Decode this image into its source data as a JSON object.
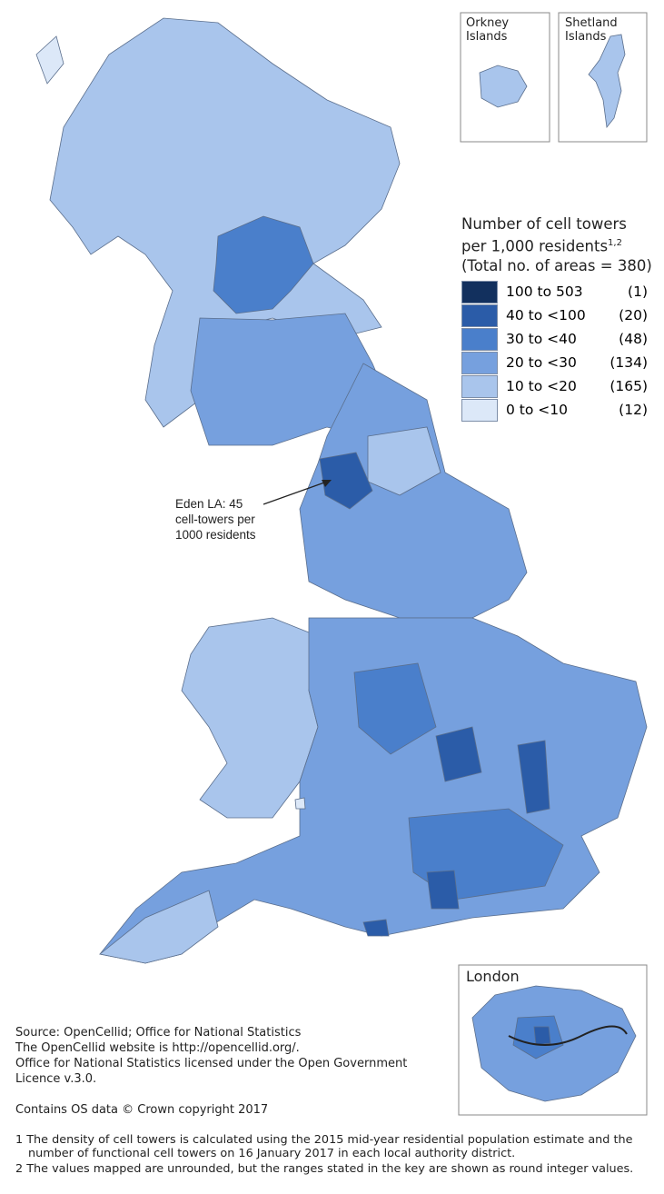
{
  "legend": {
    "title": [
      "Number of cell towers",
      "per 1,000 residents",
      "(Total no. of areas = 380)"
    ],
    "title_sup": "1,2",
    "items": [
      {
        "label": "100 to 503",
        "count": "(1)",
        "color": "#12305e"
      },
      {
        "label": "40 to <100",
        "count": "(20)",
        "color": "#2b5ca8"
      },
      {
        "label": "30 to <40",
        "count": "(48)",
        "color": "#4a7fcb"
      },
      {
        "label": "20 to <30",
        "count": "(134)",
        "color": "#76a0de"
      },
      {
        "label": "10 to <20",
        "count": "(165)",
        "color": "#a9c5ec"
      },
      {
        "label": "0 to <10",
        "count": "(12)",
        "color": "#dce8f8"
      }
    ]
  },
  "insets": {
    "orkney": [
      "Orkney",
      "Islands"
    ],
    "shetland": [
      "Shetland",
      "Islands"
    ],
    "london": "London"
  },
  "annotation": [
    "Eden LA: 45",
    "cell-towers per",
    "1000 residents"
  ],
  "source": [
    "Source: OpenCellid; Office for National Statistics",
    "The OpenCellid website is http://opencellid.org/.",
    "Office for National Statistics licensed under the Open Government",
    "Licence v.3.0.",
    "Contains OS data © Crown copyright 2017"
  ],
  "footnotes": [
    [
      "1 The density of cell towers is calculated using the 2015 mid-year residential population estimate and the",
      "number of functional cell towers on 16 January 2017 in each local authority district."
    ],
    [
      "2 The values mapped are unrounded, but the ranges stated in the key are shown as round integer values."
    ]
  ]
}
